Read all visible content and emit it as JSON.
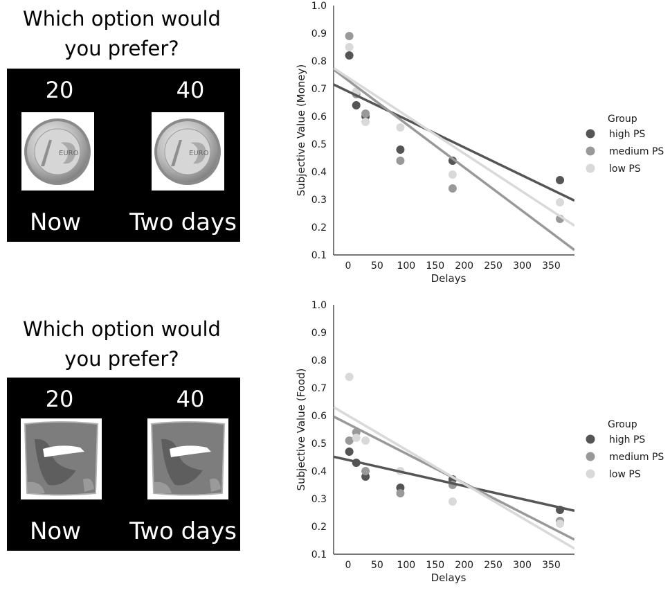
{
  "panels": [
    {
      "question_line1": "Which option would",
      "question_line2": "you prefer?",
      "left_amount": "20",
      "right_amount": "40",
      "left_time": "Now",
      "right_time": "Two days",
      "item_icon": "euro-coin-icon",
      "coin_text": "EURO"
    },
    {
      "question_line1": "Which option would",
      "question_line2": "you prefer?",
      "left_amount": "20",
      "right_amount": "40",
      "left_time": "Now",
      "right_time": "Two days",
      "item_icon": "chips-bag-icon"
    }
  ],
  "colors": {
    "high PS": "#555555",
    "medium PS": "#999999",
    "low PS": "#d9d9d9"
  },
  "chart_data": [
    {
      "type": "scatter",
      "xlabel": "Delays",
      "ylabel": "Subjective Value (Money)",
      "ylim": [
        0.1,
        1.0
      ],
      "xlim": [
        -25,
        390
      ],
      "yticks": [
        "0.1",
        "0.2",
        "0.3",
        "0.4",
        "0.5",
        "0.6",
        "0.7",
        "0.8",
        "0.9",
        "1.0"
      ],
      "xticks": [
        "0",
        "50",
        "100",
        "150",
        "200",
        "250",
        "300",
        "350"
      ],
      "legend_title": "Group",
      "legend_position": "right",
      "series": [
        {
          "name": "high PS",
          "x": [
            2,
            14,
            30,
            90,
            180,
            365
          ],
          "y": [
            0.82,
            0.64,
            0.6,
            0.48,
            0.44,
            0.37
          ],
          "fit": [
            0.69,
            -0.00101
          ]
        },
        {
          "name": "medium PS",
          "x": [
            2,
            14,
            30,
            90,
            180,
            365
          ],
          "y": [
            0.89,
            0.68,
            0.61,
            0.44,
            0.34,
            0.23
          ],
          "fit": [
            0.73,
            -0.00157
          ]
        },
        {
          "name": "low PS",
          "x": [
            2,
            14,
            30,
            90,
            180,
            365
          ],
          "y": [
            0.85,
            0.69,
            0.58,
            0.56,
            0.39,
            0.29
          ],
          "fit": [
            0.74,
            -0.00137
          ]
        }
      ]
    },
    {
      "type": "scatter",
      "xlabel": "Delays",
      "ylabel": "Subjective Value (Food)",
      "ylim": [
        0.1,
        1.0
      ],
      "xlim": [
        -25,
        390
      ],
      "yticks": [
        "0.1",
        "0.2",
        "0.3",
        "0.4",
        "0.5",
        "0.6",
        "0.7",
        "0.8",
        "0.9",
        "1.0"
      ],
      "xticks": [
        "0",
        "50",
        "100",
        "150",
        "200",
        "250",
        "300",
        "350"
      ],
      "legend_title": "Group",
      "legend_position": "right",
      "series": [
        {
          "name": "high PS",
          "x": [
            2,
            14,
            30,
            90,
            180,
            365
          ],
          "y": [
            0.47,
            0.43,
            0.38,
            0.34,
            0.37,
            0.26
          ],
          "fit": [
            0.44,
            -0.00047
          ]
        },
        {
          "name": "medium PS",
          "x": [
            2,
            14,
            30,
            90,
            180,
            365
          ],
          "y": [
            0.51,
            0.54,
            0.4,
            0.32,
            0.35,
            0.22
          ],
          "fit": [
            0.57,
            -0.00107
          ]
        },
        {
          "name": "low PS",
          "x": [
            2,
            14,
            30,
            90,
            180,
            365
          ],
          "y": [
            0.74,
            0.52,
            0.51,
            0.4,
            0.29,
            0.21
          ],
          "fit": [
            0.6,
            -0.00123
          ]
        }
      ]
    }
  ]
}
